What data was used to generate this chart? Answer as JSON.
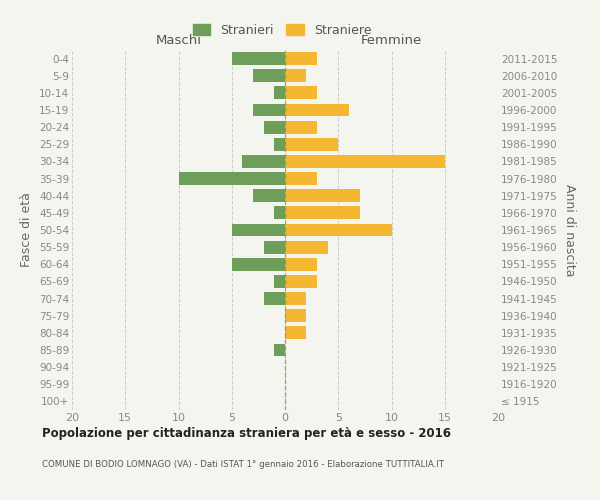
{
  "age_groups": [
    "100+",
    "95-99",
    "90-94",
    "85-89",
    "80-84",
    "75-79",
    "70-74",
    "65-69",
    "60-64",
    "55-59",
    "50-54",
    "45-49",
    "40-44",
    "35-39",
    "30-34",
    "25-29",
    "20-24",
    "15-19",
    "10-14",
    "5-9",
    "0-4"
  ],
  "birth_years": [
    "≤ 1915",
    "1916-1920",
    "1921-1925",
    "1926-1930",
    "1931-1935",
    "1936-1940",
    "1941-1945",
    "1946-1950",
    "1951-1955",
    "1956-1960",
    "1961-1965",
    "1966-1970",
    "1971-1975",
    "1976-1980",
    "1981-1985",
    "1986-1990",
    "1991-1995",
    "1996-2000",
    "2001-2005",
    "2006-2010",
    "2011-2015"
  ],
  "maschi": [
    0,
    0,
    0,
    1,
    0,
    0,
    2,
    1,
    5,
    2,
    5,
    1,
    3,
    10,
    4,
    1,
    2,
    3,
    1,
    3,
    5
  ],
  "femmine": [
    0,
    0,
    0,
    0,
    2,
    2,
    2,
    3,
    3,
    4,
    10,
    7,
    7,
    3,
    15,
    5,
    3,
    6,
    3,
    2,
    3
  ],
  "maschi_color": "#6d9e5a",
  "femmine_color": "#f5b731",
  "background_color": "#f5f5f0",
  "grid_color": "#cccccc",
  "title": "Popolazione per cittadinanza straniera per età e sesso - 2016",
  "subtitle": "COMUNE DI BODIO LOMNAGO (VA) - Dati ISTAT 1° gennaio 2016 - Elaborazione TUTTITALIA.IT",
  "ylabel_left": "Fasce di età",
  "ylabel_right": "Anni di nascita",
  "label_maschi": "Maschi",
  "label_femmine": "Femmine",
  "legend_maschi": "Stranieri",
  "legend_femmine": "Straniere",
  "xlim": 20,
  "bar_height": 0.75
}
